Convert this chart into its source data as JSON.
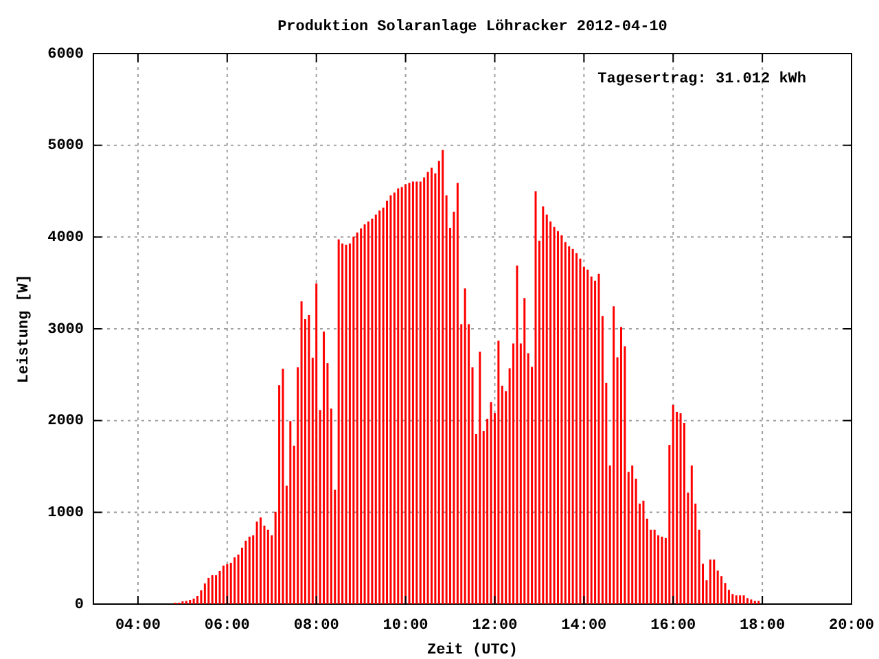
{
  "chart_data": {
    "type": "bar",
    "title": "Produktion Solaranlage Löhracker 2012-04-10",
    "xlabel": "Zeit (UTC)",
    "ylabel": "Leistung [W]",
    "annotations": [
      "Tagesertrag: 31.012 kWh"
    ],
    "xlim": [
      "2012-04-10T03:00",
      "2012-04-10T20:00"
    ],
    "xticks": [
      {
        "value": "2012-04-10T04:00",
        "label": "04:00"
      },
      {
        "value": "2012-04-10T06:00",
        "label": "06:00"
      },
      {
        "value": "2012-04-10T08:00",
        "label": "08:00"
      },
      {
        "value": "2012-04-10T10:00",
        "label": "10:00"
      },
      {
        "value": "2012-04-10T12:00",
        "label": "12:00"
      },
      {
        "value": "2012-04-10T14:00",
        "label": "14:00"
      },
      {
        "value": "2012-04-10T16:00",
        "label": "16:00"
      },
      {
        "value": "2012-04-10T18:00",
        "label": "18:00"
      },
      {
        "value": "2012-04-10T20:00",
        "label": "20:00"
      }
    ],
    "ylim": [
      0,
      6000
    ],
    "yticks": [
      0,
      1000,
      2000,
      3000,
      4000,
      5000,
      6000
    ],
    "grid": true,
    "x": [
      "2012-04-10T04:50",
      "2012-04-10T04:55",
      "2012-04-10T05:00",
      "2012-04-10T05:05",
      "2012-04-10T05:10",
      "2012-04-10T05:15",
      "2012-04-10T05:20",
      "2012-04-10T05:25",
      "2012-04-10T05:30",
      "2012-04-10T05:35",
      "2012-04-10T05:40",
      "2012-04-10T05:45",
      "2012-04-10T05:50",
      "2012-04-10T05:55",
      "2012-04-10T06:00",
      "2012-04-10T06:05",
      "2012-04-10T06:10",
      "2012-04-10T06:15",
      "2012-04-10T06:20",
      "2012-04-10T06:25",
      "2012-04-10T06:30",
      "2012-04-10T06:35",
      "2012-04-10T06:40",
      "2012-04-10T06:45",
      "2012-04-10T06:50",
      "2012-04-10T06:55",
      "2012-04-10T07:00",
      "2012-04-10T07:05",
      "2012-04-10T07:10",
      "2012-04-10T07:15",
      "2012-04-10T07:20",
      "2012-04-10T07:25",
      "2012-04-10T07:30",
      "2012-04-10T07:35",
      "2012-04-10T07:40",
      "2012-04-10T07:45",
      "2012-04-10T07:50",
      "2012-04-10T07:55",
      "2012-04-10T08:00",
      "2012-04-10T08:05",
      "2012-04-10T08:10",
      "2012-04-10T08:15",
      "2012-04-10T08:20",
      "2012-04-10T08:25",
      "2012-04-10T08:30",
      "2012-04-10T08:35",
      "2012-04-10T08:40",
      "2012-04-10T08:45",
      "2012-04-10T08:50",
      "2012-04-10T08:55",
      "2012-04-10T09:00",
      "2012-04-10T09:05",
      "2012-04-10T09:10",
      "2012-04-10T09:15",
      "2012-04-10T09:20",
      "2012-04-10T09:25",
      "2012-04-10T09:30",
      "2012-04-10T09:35",
      "2012-04-10T09:40",
      "2012-04-10T09:45",
      "2012-04-10T09:50",
      "2012-04-10T09:55",
      "2012-04-10T10:00",
      "2012-04-10T10:05",
      "2012-04-10T10:10",
      "2012-04-10T10:15",
      "2012-04-10T10:20",
      "2012-04-10T10:25",
      "2012-04-10T10:30",
      "2012-04-10T10:35",
      "2012-04-10T10:40",
      "2012-04-10T10:45",
      "2012-04-10T10:50",
      "2012-04-10T10:55",
      "2012-04-10T11:00",
      "2012-04-10T11:05",
      "2012-04-10T11:10",
      "2012-04-10T11:15",
      "2012-04-10T11:20",
      "2012-04-10T11:25",
      "2012-04-10T11:30",
      "2012-04-10T11:35",
      "2012-04-10T11:40",
      "2012-04-10T11:45",
      "2012-04-10T11:50",
      "2012-04-10T11:55",
      "2012-04-10T12:00",
      "2012-04-10T12:05",
      "2012-04-10T12:10",
      "2012-04-10T12:15",
      "2012-04-10T12:20",
      "2012-04-10T12:25",
      "2012-04-10T12:30",
      "2012-04-10T12:35",
      "2012-04-10T12:40",
      "2012-04-10T12:45",
      "2012-04-10T12:50",
      "2012-04-10T12:55",
      "2012-04-10T13:00",
      "2012-04-10T13:05",
      "2012-04-10T13:10",
      "2012-04-10T13:15",
      "2012-04-10T13:20",
      "2012-04-10T13:25",
      "2012-04-10T13:30",
      "2012-04-10T13:35",
      "2012-04-10T13:40",
      "2012-04-10T13:45",
      "2012-04-10T13:50",
      "2012-04-10T13:55",
      "2012-04-10T14:00",
      "2012-04-10T14:05",
      "2012-04-10T14:10",
      "2012-04-10T14:15",
      "2012-04-10T14:20",
      "2012-04-10T14:25",
      "2012-04-10T14:30",
      "2012-04-10T14:35",
      "2012-04-10T14:40",
      "2012-04-10T14:45",
      "2012-04-10T14:50",
      "2012-04-10T14:55",
      "2012-04-10T15:00",
      "2012-04-10T15:05",
      "2012-04-10T15:10",
      "2012-04-10T15:15",
      "2012-04-10T15:20",
      "2012-04-10T15:25",
      "2012-04-10T15:30",
      "2012-04-10T15:35",
      "2012-04-10T15:40",
      "2012-04-10T15:45",
      "2012-04-10T15:50",
      "2012-04-10T15:55",
      "2012-04-10T16:00",
      "2012-04-10T16:05",
      "2012-04-10T16:10",
      "2012-04-10T16:15",
      "2012-04-10T16:20",
      "2012-04-10T16:25",
      "2012-04-10T16:30",
      "2012-04-10T16:35",
      "2012-04-10T16:40",
      "2012-04-10T16:45",
      "2012-04-10T16:50",
      "2012-04-10T16:55",
      "2012-04-10T17:00",
      "2012-04-10T17:05",
      "2012-04-10T17:10",
      "2012-04-10T17:15",
      "2012-04-10T17:20",
      "2012-04-10T17:25",
      "2012-04-10T17:30",
      "2012-04-10T17:35",
      "2012-04-10T17:40",
      "2012-04-10T17:45",
      "2012-04-10T17:50",
      "2012-04-10T17:55"
    ],
    "series": [
      {
        "color": "#ff0000",
        "values": [
          15,
          15,
          30,
          35,
          45,
          60,
          90,
          150,
          225,
          285,
          315,
          315,
          360,
          420,
          435,
          450,
          510,
          540,
          615,
          690,
          735,
          750,
          900,
          945,
          855,
          810,
          750,
          1005,
          2385,
          2565,
          1290,
          1995,
          1725,
          2580,
          3300,
          3105,
          3150,
          2685,
          3495,
          2115,
          2970,
          2625,
          2130,
          1245,
          3975,
          3930,
          3915,
          3930,
          4005,
          4050,
          4095,
          4140,
          4170,
          4200,
          4245,
          4290,
          4320,
          4395,
          4455,
          4485,
          4530,
          4545,
          4575,
          4590,
          4605,
          4605,
          4605,
          4650,
          4710,
          4755,
          4695,
          4830,
          4950,
          4455,
          4100,
          4275,
          4590,
          3050,
          3440,
          3050,
          2580,
          1855,
          2750,
          1885,
          2020,
          2200,
          2080,
          2870,
          2380,
          2320,
          2570,
          2840,
          3690,
          2840,
          3335,
          2735,
          2585,
          4500,
          3960,
          4335,
          4245,
          4170,
          4110,
          4065,
          4020,
          3945,
          3900,
          3870,
          3825,
          3765,
          3675,
          3645,
          3570,
          3525,
          3600,
          3140,
          2410,
          1510,
          3245,
          2690,
          3020,
          2810,
          1440,
          1510,
          1365,
          1095,
          1125,
          930,
          810,
          810,
          750,
          735,
          720,
          1735,
          2170,
          2095,
          2080,
          1975,
          1215,
          1510,
          1095,
          810,
          440,
          260,
          485,
          485,
          365,
          305,
          230,
          155,
          110,
          95,
          95,
          95,
          65,
          50,
          35,
          35
        ]
      }
    ]
  }
}
